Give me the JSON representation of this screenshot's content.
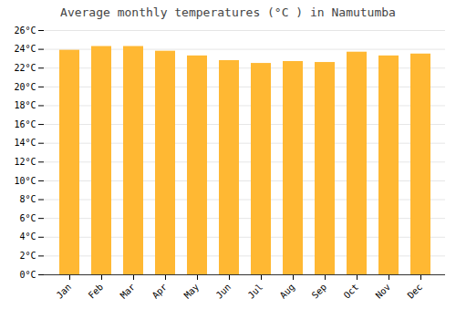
{
  "chart_data": {
    "type": "bar",
    "title": "Average monthly temperatures (°C ) in Namutumba",
    "categories": [
      "Jan",
      "Feb",
      "Mar",
      "Apr",
      "May",
      "Jun",
      "Jul",
      "Aug",
      "Sep",
      "Oct",
      "Nov",
      "Dec"
    ],
    "values": [
      23.9,
      24.3,
      24.3,
      23.8,
      23.3,
      22.8,
      22.5,
      22.7,
      22.6,
      23.7,
      23.3,
      23.5
    ],
    "color": "#FFB833",
    "ylim": [
      0,
      26
    ],
    "yticks": [
      {
        "value": 0,
        "label": "0°C"
      },
      {
        "value": 2,
        "label": "2°C"
      },
      {
        "value": 4,
        "label": "4°C"
      },
      {
        "value": 6,
        "label": "6°C"
      },
      {
        "value": 8,
        "label": "8°C"
      },
      {
        "value": 10,
        "label": "10°C"
      },
      {
        "value": 12,
        "label": "12°C"
      },
      {
        "value": 14,
        "label": "14°C"
      },
      {
        "value": 16,
        "label": "16°C"
      },
      {
        "value": 18,
        "label": "18°C"
      },
      {
        "value": 20,
        "label": "20°C"
      },
      {
        "value": 22,
        "label": "22°C"
      },
      {
        "value": 24,
        "label": "24°C"
      },
      {
        "value": 26,
        "label": "26°C"
      }
    ],
    "grid": true
  }
}
